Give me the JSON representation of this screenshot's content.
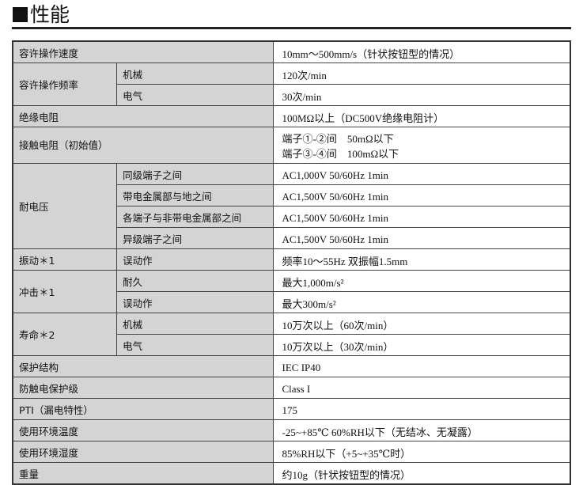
{
  "title": "性能",
  "rows": {
    "speed": {
      "label": "容许操作速度",
      "value": "10mm～500mm/s（针状按钮型的情况）"
    },
    "freq": {
      "label": "容许操作频率",
      "mech": "机械",
      "mech_value": "120次/min",
      "elec": "电气",
      "elec_value": "30次/min"
    },
    "insulation": {
      "label": "绝缘电阻",
      "value": "100MΩ以上（DC500V绝缘电阻计）"
    },
    "contact": {
      "label": "接触电阻（初始值）",
      "value1": "端子①-②间　50mΩ以下",
      "value2": "端子③-④间　100mΩ以下"
    },
    "withstand": {
      "label": "耐电压",
      "items": [
        {
          "label": "同级端子之间",
          "value": "AC1,000V 50/60Hz 1min"
        },
        {
          "label": "带电金属部与地之间",
          "value": "AC1,500V 50/60Hz 1min"
        },
        {
          "label": "各端子与非带电金属部之间",
          "value": "AC1,500V 50/60Hz 1min"
        },
        {
          "label": "异级端子之间",
          "value": "AC1,500V 50/60Hz 1min"
        }
      ]
    },
    "vibration": {
      "label": "振动＊1",
      "sub": "误动作",
      "value": "频率10～55Hz 双振幅1.5mm"
    },
    "shock": {
      "label": "冲击＊1",
      "dur": "耐久",
      "dur_value": "最大1,000m/s²",
      "mal": "误动作",
      "mal_value": "最大300m/s²"
    },
    "life": {
      "label": "寿命＊2",
      "mech": "机械",
      "mech_value": "10万次以上（60次/min）",
      "elec": "电气",
      "elec_value": "10万次以上（30次/min）"
    },
    "protection": {
      "label": "保护结构",
      "value": "IEC IP40"
    },
    "shockclass": {
      "label": "防触电保护级",
      "value": "Class I"
    },
    "pti": {
      "label": "PTI（漏电特性）",
      "value": "175"
    },
    "temp": {
      "label": "使用环境温度",
      "value": "-25~+85℃ 60%RH以下（无结冰、无凝露）"
    },
    "humidity": {
      "label": "使用环境湿度",
      "value": "85%RH以下（+5~+35℃时）"
    },
    "weight": {
      "label": "重量",
      "value": "约10g（针状按钮型的情况）"
    }
  }
}
